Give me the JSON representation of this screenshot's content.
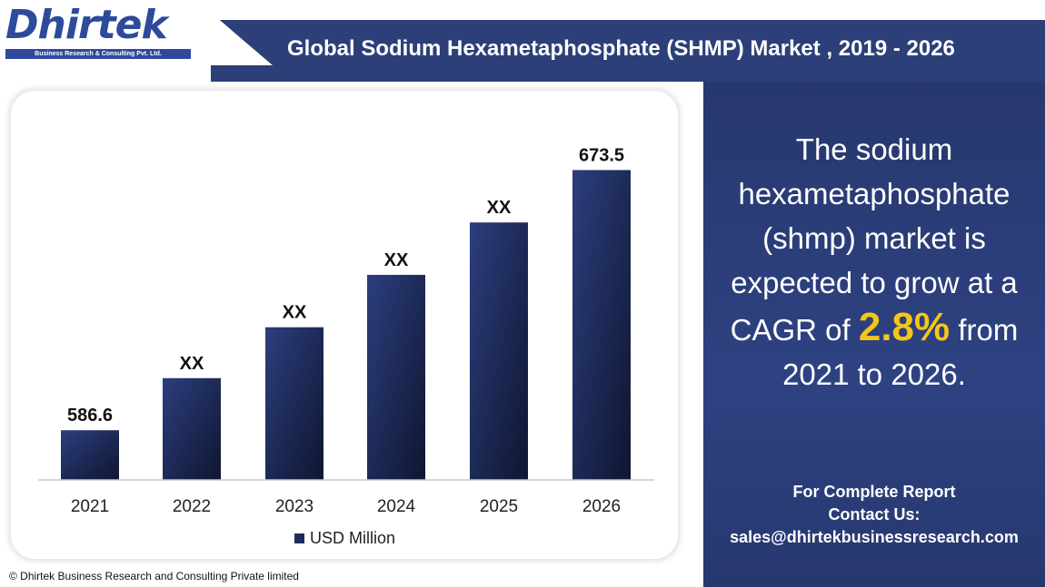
{
  "header": {
    "logo_text": "Dhirtek",
    "logo_subtitle": "Business Research & Consulting Pvt. Ltd.",
    "title": "Global Sodium Hexametaphosphate (SHMP) Market , 2019 - 2026"
  },
  "panel": {
    "line1": "The sodium hexametaphosphate (shmp) market is expected to grow at a",
    "cagr_prefix": "CAGR of ",
    "cagr_value": "2.8%",
    "cagr_suffix": " from",
    "line3": "2021 to 2026.",
    "contact_line1": "For Complete Report",
    "contact_line2": "Contact Us:",
    "contact_email": "sales@dhirtekbusinessresearch.com"
  },
  "footer": {
    "copyright": "© Dhirtek Business Research and Consulting Private limited"
  },
  "colors": {
    "header_bg": "#2c3f78",
    "bar_top": "#2c3e7e",
    "bar_bottom": "#0f1630",
    "accent": "#f5c518"
  },
  "chart_data": {
    "type": "bar",
    "categories": [
      "2021",
      "2022",
      "2023",
      "2024",
      "2025",
      "2026"
    ],
    "series": [
      {
        "name": "USD Million",
        "values": [
          586.6,
          604.0,
          621.0,
          638.5,
          656.0,
          673.5
        ]
      }
    ],
    "data_labels": [
      "586.6",
      "XX",
      "XX",
      "XX",
      "XX",
      "673.5"
    ],
    "ylim": [
      570.0,
      680.0
    ],
    "grid": false,
    "legend": "bottom",
    "title": "",
    "xlabel": "",
    "ylabel": ""
  }
}
